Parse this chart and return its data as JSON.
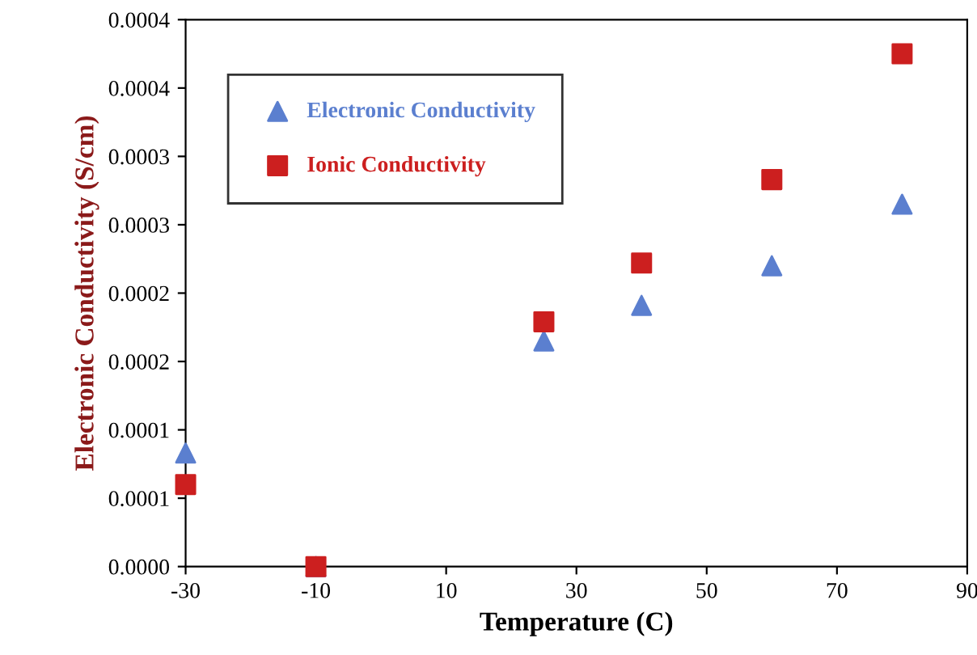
{
  "chart_data": {
    "type": "scatter",
    "xlabel": "Temperature (C)",
    "ylabel": "Electronic Conductivity (S/cm)",
    "xlim": [
      -30,
      90
    ],
    "xticks": [
      -30,
      -10,
      10,
      30,
      50,
      70,
      90
    ],
    "ylim": [
      0,
      0.0004
    ],
    "yticks": [
      {
        "value": 0,
        "label": "0.0000"
      },
      {
        "value": 5e-05,
        "label": "0.0001"
      },
      {
        "value": 0.0001,
        "label": "0.0001"
      },
      {
        "value": 0.00015,
        "label": "0.0002"
      },
      {
        "value": 0.0002,
        "label": "0.0002"
      },
      {
        "value": 0.00025,
        "label": "0.0003"
      },
      {
        "value": 0.0003,
        "label": "0.0003"
      },
      {
        "value": 0.00035,
        "label": "0.0004"
      },
      {
        "value": 0.0004,
        "label": "0.0004"
      }
    ],
    "x": [
      -30,
      -10,
      25,
      40,
      60,
      80
    ],
    "series": [
      {
        "name": "Electronic Conductivity",
        "color": "#5b7fcf",
        "marker": "triangle",
        "values": [
          8.3e-05,
          0,
          0.000165,
          0.000191,
          0.00022,
          0.000265
        ]
      },
      {
        "name": "Ionic Conductivity",
        "color": "#cc1f1f",
        "marker": "square",
        "values": [
          6e-05,
          0,
          0.000179,
          0.000222,
          0.000283,
          0.000375
        ]
      }
    ],
    "grid": false,
    "legend": "top left"
  }
}
